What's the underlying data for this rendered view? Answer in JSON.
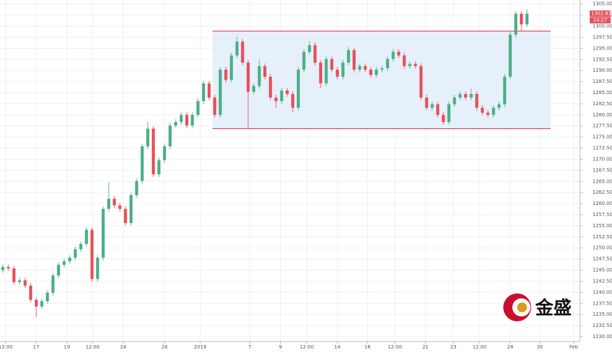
{
  "chart_data": {
    "type": "candlestick",
    "up_color": "#4caf88",
    "down_color": "#e8505b",
    "grid": true,
    "xlim": [
      -0.5,
      103.5
    ],
    "ylim": [
      1228.9,
      1305.9
    ],
    "xticks": [
      {
        "value": 0.5,
        "label": "12:00"
      },
      {
        "value": 6,
        "label": "17"
      },
      {
        "value": 11.5,
        "label": "19"
      },
      {
        "value": 16.1,
        "label": "12:00"
      },
      {
        "value": 21.6,
        "label": "24"
      },
      {
        "value": 29,
        "label": "26"
      },
      {
        "value": 35.4,
        "label": "2019"
      },
      {
        "value": 44.3,
        "label": "7"
      },
      {
        "value": 49.8,
        "label": "9"
      },
      {
        "value": 54.5,
        "label": "12:00"
      },
      {
        "value": 60,
        "label": "14"
      },
      {
        "value": 65.4,
        "label": "16"
      },
      {
        "value": 70.3,
        "label": "12:00"
      },
      {
        "value": 75.8,
        "label": "21"
      },
      {
        "value": 80.8,
        "label": "23"
      },
      {
        "value": 85.5,
        "label": "12:00"
      },
      {
        "value": 91,
        "label": "28"
      },
      {
        "value": 96.3,
        "label": "30"
      },
      {
        "value": 102.4,
        "label": "Feb"
      }
    ],
    "yticks": [
      {
        "value": 1230,
        "label": "1230.00"
      },
      {
        "value": 1232.5,
        "label": "1232.50"
      },
      {
        "value": 1235,
        "label": "1235.00"
      },
      {
        "value": 1237.5,
        "label": "1237.50"
      },
      {
        "value": 1240,
        "label": "1240.00"
      },
      {
        "value": 1242.5,
        "label": "1242.50"
      },
      {
        "value": 1245,
        "label": "1245.00"
      },
      {
        "value": 1247.5,
        "label": "1247.50"
      },
      {
        "value": 1250,
        "label": "1250.00"
      },
      {
        "value": 1252.5,
        "label": "1252.50"
      },
      {
        "value": 1255,
        "label": "1255.00"
      },
      {
        "value": 1257.5,
        "label": "1257.50"
      },
      {
        "value": 1260,
        "label": "1260.00"
      },
      {
        "value": 1262.5,
        "label": "1262.50"
      },
      {
        "value": 1265,
        "label": "1265.00"
      },
      {
        "value": 1267.5,
        "label": "1267.50"
      },
      {
        "value": 1270,
        "label": "1270.00"
      },
      {
        "value": 1272.5,
        "label": "1272.50"
      },
      {
        "value": 1275,
        "label": "1275.00"
      },
      {
        "value": 1277.5,
        "label": "1277.50"
      },
      {
        "value": 1280,
        "label": "1280.00"
      },
      {
        "value": 1282.5,
        "label": "1282.50"
      },
      {
        "value": 1285,
        "label": "1285.00"
      },
      {
        "value": 1287.5,
        "label": "1287.50"
      },
      {
        "value": 1290,
        "label": "1290.00"
      },
      {
        "value": 1292.5,
        "label": "1292.50"
      },
      {
        "value": 1295,
        "label": "1295.00"
      },
      {
        "value": 1297.5,
        "label": "1297.50"
      },
      {
        "value": 1300,
        "label": "1300.00"
      },
      {
        "value": 1302.5,
        "label": "1302.50"
      },
      {
        "value": 1305,
        "label": "1305.00"
      }
    ],
    "open": [
      1245.0,
      1245.7,
      1245.4,
      1242.3,
      1242.7,
      1241.5,
      1238.3,
      1236.8,
      1238.0,
      1239.9,
      1243.8,
      1246.2,
      1247.0,
      1247.8,
      1249.7,
      1250.9,
      1254.1,
      1243.0,
      1247.8,
      1258.8,
      1261.1,
      1259.6,
      1258.8,
      1255.6,
      1261.9,
      1265.1,
      1272.9,
      1276.9,
      1266.6,
      1269.8,
      1272.9,
      1277.6,
      1278.4,
      1280.0,
      1277.6,
      1280.0,
      1283.1,
      1287.1,
      1283.9,
      1280.0,
      1290.2,
      1287.9,
      1293.4,
      1296.5,
      1291.8,
      1285.2,
      1286.5,
      1291.0,
      1288.6,
      1283.9,
      1283.1,
      1285.5,
      1284.7,
      1281.6,
      1290.2,
      1294.2,
      1295.7,
      1291.8,
      1287.1,
      1292.6,
      1290.2,
      1288.6,
      1291.8,
      1294.6,
      1290.2,
      1291.0,
      1290.2,
      1289.0,
      1290.2,
      1290.5,
      1292.6,
      1294.2,
      1293.4,
      1291.0,
      1291.5,
      1291.0,
      1283.9,
      1281.6,
      1282.4,
      1280.0,
      1278.4,
      1282.4,
      1283.9,
      1284.7,
      1283.9,
      1284.7,
      1281.6,
      1280.5,
      1280.0,
      1281.6,
      1282.4,
      1288.6,
      1298.1,
      1302.8,
      1300.4
    ],
    "high": [
      1246.3,
      1246.3,
      1246.0,
      1243.3,
      1243.3,
      1242.1,
      1238.9,
      1238.6,
      1240.5,
      1244.4,
      1246.8,
      1247.6,
      1248.4,
      1250.3,
      1251.5,
      1254.7,
      1254.7,
      1248.4,
      1259.4,
      1264.8,
      1261.7,
      1260.2,
      1259.4,
      1262.5,
      1265.7,
      1273.5,
      1278.5,
      1277.5,
      1270.4,
      1273.5,
      1278.2,
      1279.0,
      1280.6,
      1280.6,
      1280.6,
      1283.7,
      1287.7,
      1287.7,
      1284.5,
      1290.8,
      1290.8,
      1294.0,
      1297.6,
      1297.1,
      1292.4,
      1287.1,
      1292.5,
      1291.6,
      1289.2,
      1284.5,
      1286.1,
      1286.1,
      1285.3,
      1290.8,
      1294.8,
      1296.6,
      1296.3,
      1292.4,
      1293.2,
      1293.2,
      1290.8,
      1292.4,
      1295.3,
      1295.2,
      1291.6,
      1291.6,
      1290.8,
      1290.8,
      1291.1,
      1293.2,
      1294.8,
      1294.8,
      1294.0,
      1292.1,
      1292.1,
      1291.6,
      1284.5,
      1283.0,
      1283.0,
      1280.6,
      1283.0,
      1284.5,
      1285.3,
      1285.3,
      1285.9,
      1285.3,
      1282.2,
      1281.1,
      1282.2,
      1283.0,
      1289.2,
      1298.7,
      1303.4,
      1303.4,
      1303.8
    ],
    "low": [
      1244.4,
      1244.8,
      1241.7,
      1241.7,
      1240.9,
      1237.7,
      1234.4,
      1236.2,
      1237.4,
      1239.3,
      1243.2,
      1245.6,
      1246.4,
      1247.2,
      1249.1,
      1250.3,
      1242.4,
      1242.4,
      1247.2,
      1258.2,
      1259.0,
      1258.2,
      1255.0,
      1255.0,
      1261.3,
      1264.5,
      1272.3,
      1266.0,
      1266.0,
      1269.2,
      1272.3,
      1277.0,
      1277.8,
      1277.0,
      1277.0,
      1279.4,
      1282.5,
      1283.3,
      1279.4,
      1279.4,
      1287.3,
      1287.3,
      1292.8,
      1291.2,
      1277.0,
      1284.6,
      1285.9,
      1288.0,
      1283.3,
      1281.5,
      1282.5,
      1284.1,
      1280.6,
      1281.0,
      1289.6,
      1293.6,
      1291.2,
      1286.0,
      1286.5,
      1289.6,
      1288.0,
      1288.0,
      1291.2,
      1289.6,
      1289.6,
      1289.6,
      1288.4,
      1288.4,
      1289.6,
      1289.9,
      1292.0,
      1292.8,
      1290.4,
      1290.4,
      1290.4,
      1283.3,
      1281.0,
      1281.0,
      1279.4,
      1277.8,
      1277.8,
      1281.8,
      1283.3,
      1283.3,
      1283.3,
      1281.0,
      1279.9,
      1279.4,
      1279.4,
      1281.0,
      1281.8,
      1288.0,
      1297.5,
      1299.0,
      1299.8
    ],
    "close": [
      1245.7,
      1245.4,
      1242.3,
      1242.7,
      1241.5,
      1238.3,
      1236.8,
      1238.0,
      1239.9,
      1243.8,
      1246.2,
      1247.0,
      1247.8,
      1249.7,
      1250.9,
      1254.1,
      1243.0,
      1247.8,
      1258.8,
      1261.1,
      1259.6,
      1258.8,
      1255.6,
      1261.9,
      1265.1,
      1272.9,
      1276.9,
      1266.6,
      1269.8,
      1272.9,
      1277.6,
      1278.4,
      1280.0,
      1277.6,
      1280.0,
      1283.1,
      1287.1,
      1283.9,
      1280.0,
      1290.2,
      1287.9,
      1293.4,
      1296.5,
      1291.8,
      1285.2,
      1286.5,
      1291.0,
      1288.6,
      1283.9,
      1283.1,
      1285.5,
      1284.7,
      1281.6,
      1290.2,
      1294.2,
      1295.7,
      1291.8,
      1287.1,
      1292.6,
      1290.2,
      1288.6,
      1291.8,
      1294.6,
      1290.2,
      1291.0,
      1290.2,
      1289.0,
      1290.2,
      1290.5,
      1292.6,
      1294.2,
      1293.4,
      1291.0,
      1291.5,
      1291.0,
      1283.9,
      1281.6,
      1282.4,
      1280.0,
      1278.4,
      1282.4,
      1283.9,
      1284.7,
      1283.9,
      1284.7,
      1281.6,
      1280.5,
      1280.0,
      1281.6,
      1282.4,
      1288.6,
      1298.1,
      1302.8,
      1300.4,
      1302.83
    ],
    "range_box": {
      "x": [
        37.6,
        98.25
      ],
      "y": [
        1276.9,
        1298.9
      ],
      "fill": "#e3eefa",
      "stroke": "#e0404a"
    },
    "last_price": {
      "value": 1302.83,
      "label": "1302.83"
    },
    "last_time": "14:27",
    "watermark": "金盛"
  }
}
